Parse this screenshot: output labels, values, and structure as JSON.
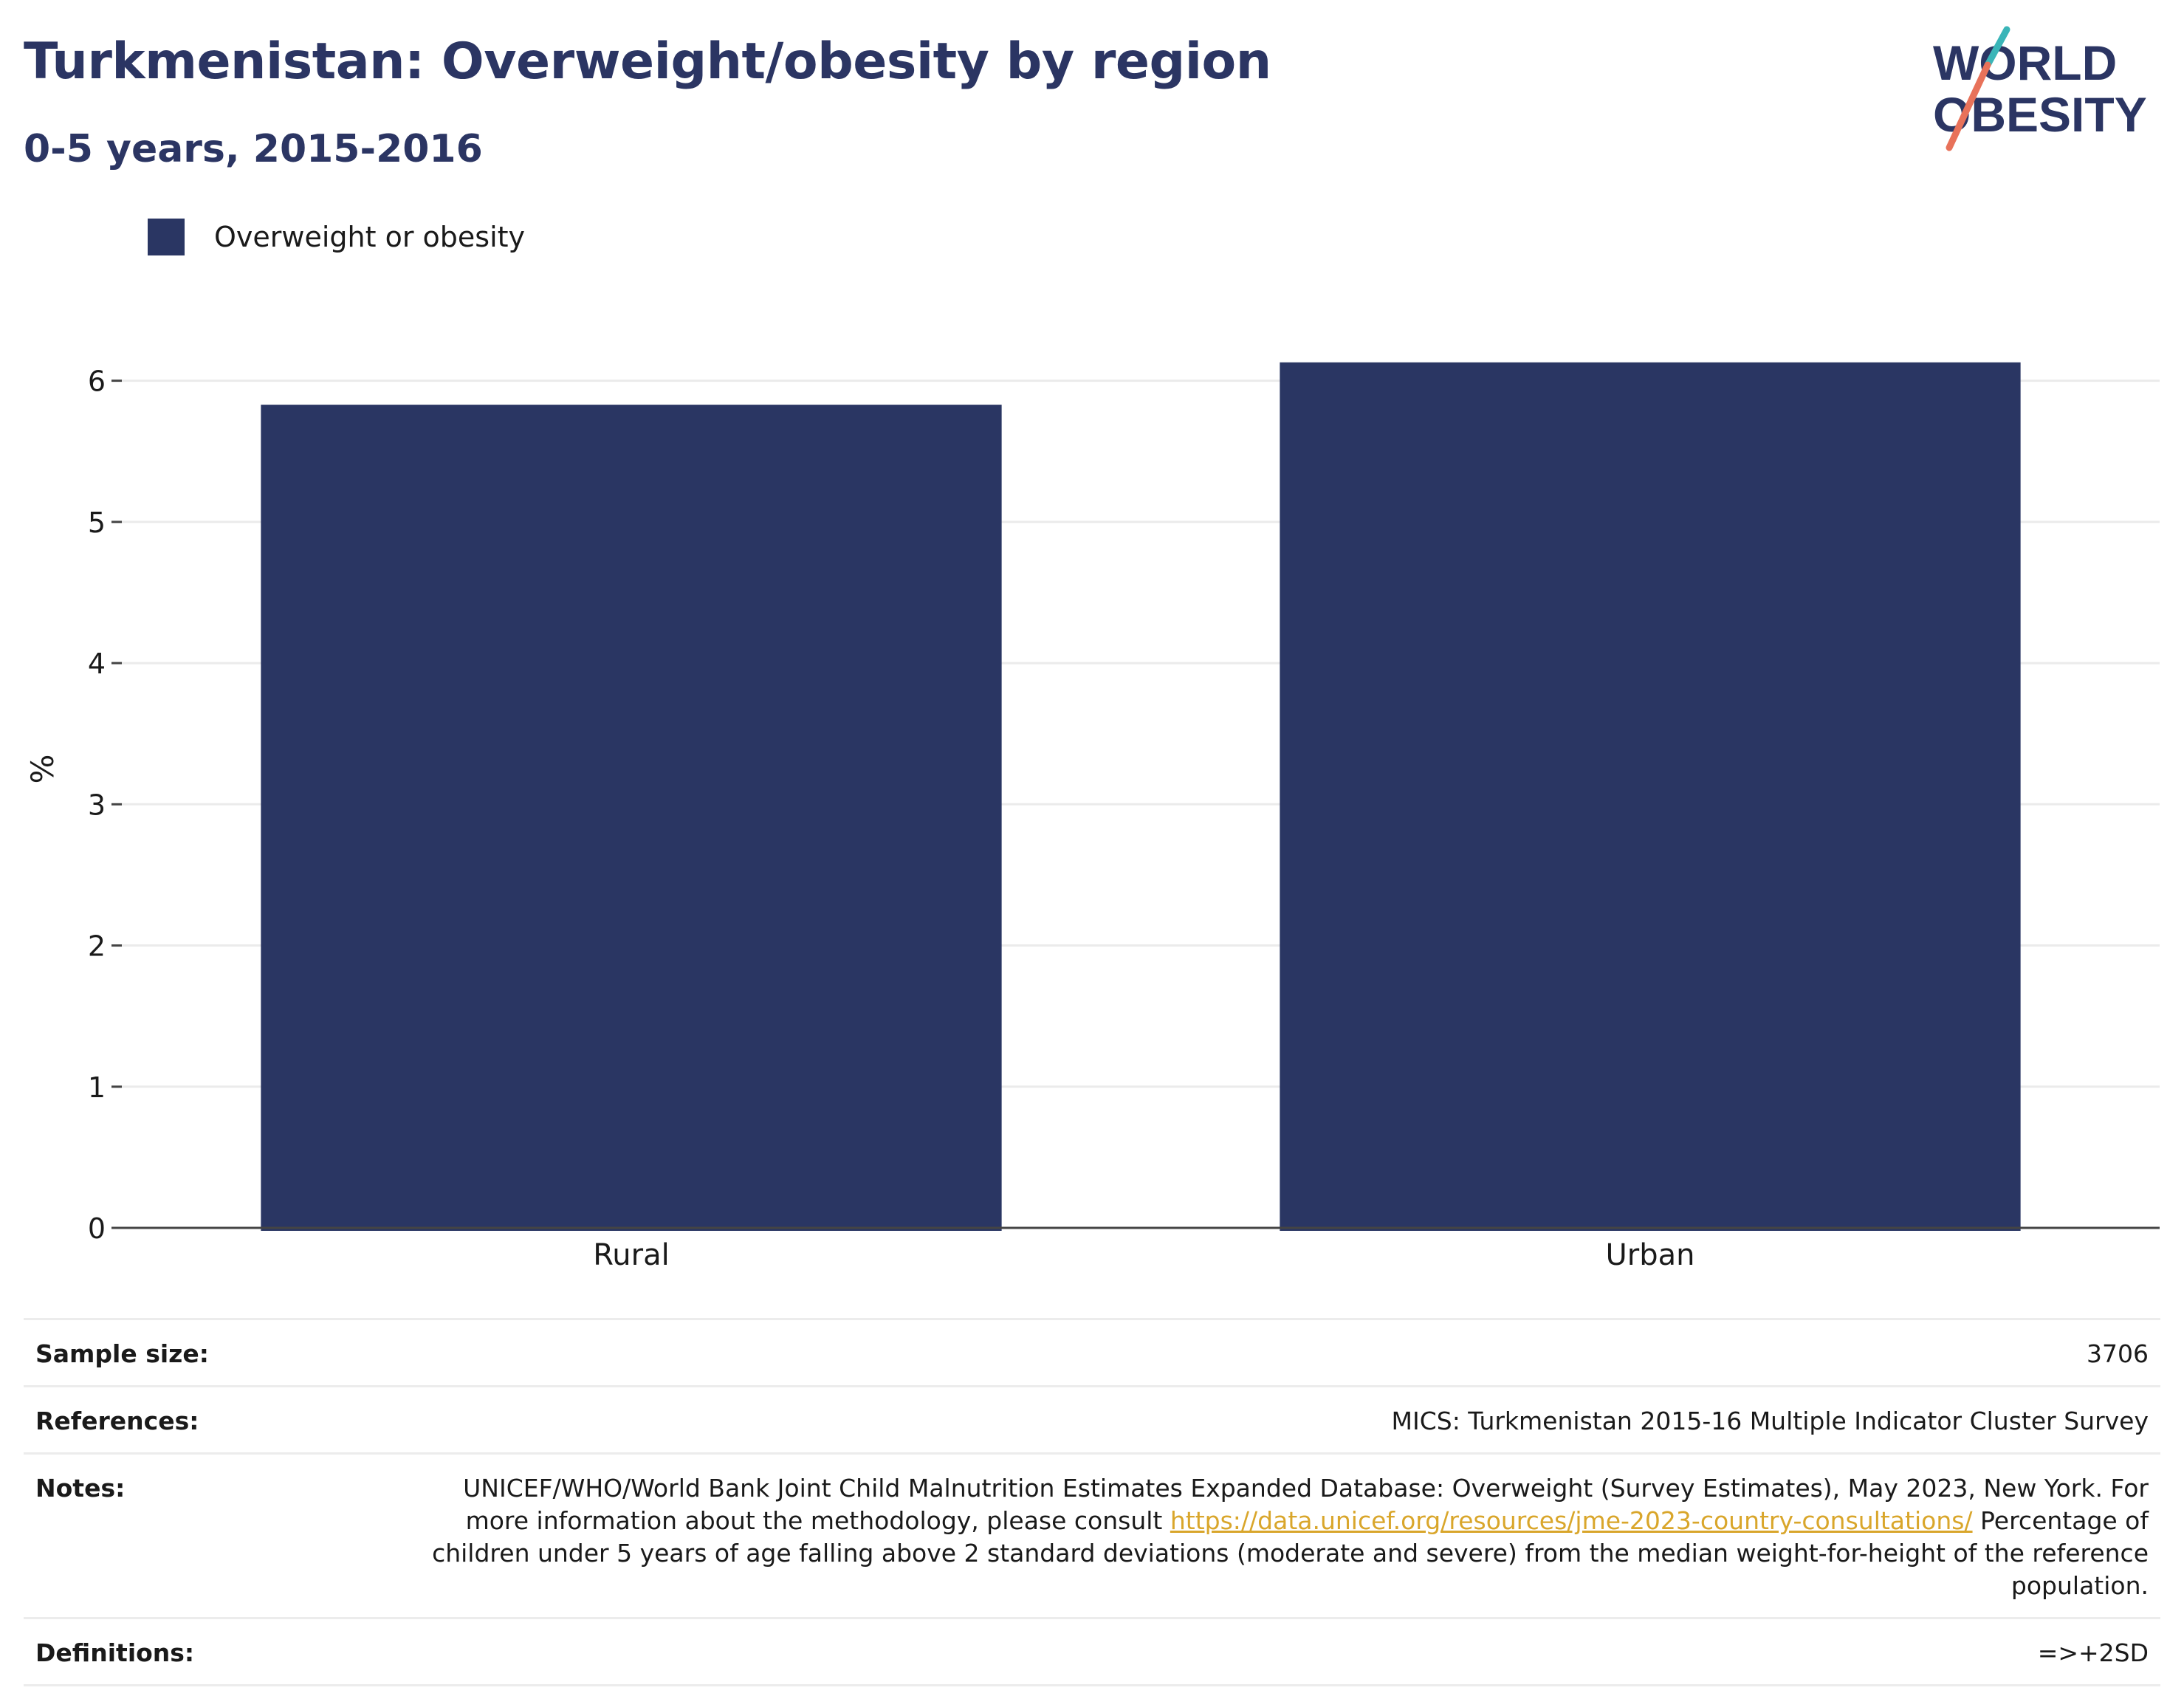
{
  "header": {
    "title": "Turkmenistan: Overweight/obesity by region",
    "subtitle": "0-5 years, 2015-2016"
  },
  "logo": {
    "line1": "WORLD",
    "line2": "OBESITY"
  },
  "colors": {
    "bar": "#2a3663",
    "title": "#2b3563",
    "link": "#d9a62b",
    "logo_teal": "#3ab5b8",
    "logo_coral": "#e8725a"
  },
  "chart_data": {
    "type": "bar",
    "categories": [
      "Rural",
      "Urban"
    ],
    "series": [
      {
        "name": "Overweight or obesity",
        "values": [
          5.83,
          6.13
        ]
      }
    ],
    "ylabel": "%",
    "xlabel": "",
    "ylim": [
      0,
      6.5
    ],
    "yticks": [
      0,
      1,
      2,
      3,
      4,
      5,
      6
    ],
    "grid": true,
    "legend": "top-left"
  },
  "info": {
    "sample_size_label": "Sample size:",
    "sample_size_value": "3706",
    "references_label": "References:",
    "references_value": "MICS: Turkmenistan 2015-16 Multiple Indicator Cluster Survey",
    "notes_label": "Notes:",
    "notes_text_1": "UNICEF/WHO/World Bank Joint Child Malnutrition Estimates Expanded Database: Overweight (Survey Estimates), May 2023, New York. For more information about the methodology, please consult ",
    "notes_link": "https://data.unicef.org/resources/jme-2023-country-consultations/",
    "notes_text_2": " Percentage of children under 5 years of age falling above 2 standard deviations (moderate and severe) from the median weight-for-height of the reference population.",
    "definitions_label": "Definitions:",
    "definitions_value": "=>+2SD"
  }
}
